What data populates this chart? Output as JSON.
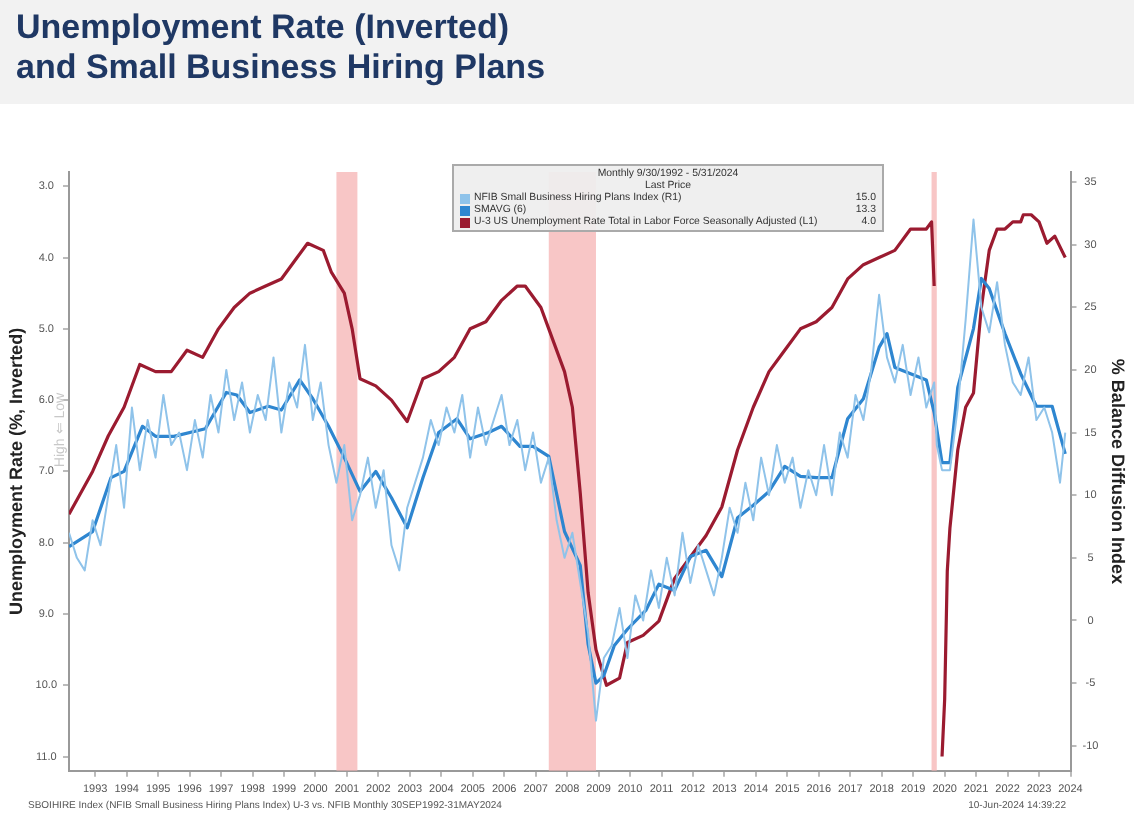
{
  "chart_data": {
    "type": "line",
    "title": "Unemployment Rate (Inverted)\nand Small Business Hiring Plans",
    "ylabel": "Unemployment Rate (%, Inverted)",
    "y2label": "% Balance Diffusion Index",
    "legend_title": "Monthly 9/30/1992 - 5/31/2024",
    "legend": "top",
    "grid": false,
    "marker": "none",
    "line_style": "solid",
    "annotations": [
      "Last Price",
      "SBOIHIRE Index (NFIB Small Business Hiring Plans Index) U-3 vs. NFIB Monthly 30SEP1992-31MAY2024",
      "10-Jun-2024 14:39:22",
      "High ⇐ Low",
      "15.0",
      "13.3",
      "4.0"
    ],
    "xlim": [
      "1992-09",
      "2024-07"
    ],
    "xticks": [
      {
        "value": "1993-07",
        "label": "1993"
      },
      {
        "value": "1994-07",
        "label": "1994"
      },
      {
        "value": "1995-07",
        "label": "1995"
      },
      {
        "value": "1996-07",
        "label": "1996"
      },
      {
        "value": "1997-07",
        "label": "1997"
      },
      {
        "value": "1998-07",
        "label": "1998"
      },
      {
        "value": "1999-07",
        "label": "1999"
      },
      {
        "value": "2000-07",
        "label": "2000"
      },
      {
        "value": "2001-07",
        "label": "2001"
      },
      {
        "value": "2002-07",
        "label": "2002"
      },
      {
        "value": "2003-07",
        "label": "2003"
      },
      {
        "value": "2004-07",
        "label": "2004"
      },
      {
        "value": "2005-07",
        "label": "2005"
      },
      {
        "value": "2006-07",
        "label": "2006"
      },
      {
        "value": "2007-07",
        "label": "2007"
      },
      {
        "value": "2008-07",
        "label": "2008"
      },
      {
        "value": "2009-07",
        "label": "2009"
      },
      {
        "value": "2010-07",
        "label": "2010"
      },
      {
        "value": "2011-07",
        "label": "2011"
      },
      {
        "value": "2012-07",
        "label": "2012"
      },
      {
        "value": "2013-07",
        "label": "2013"
      },
      {
        "value": "2014-07",
        "label": "2014"
      },
      {
        "value": "2015-07",
        "label": "2015"
      },
      {
        "value": "2016-07",
        "label": "2016"
      },
      {
        "value": "2017-07",
        "label": "2017"
      },
      {
        "value": "2018-07",
        "label": "2018"
      },
      {
        "value": "2019-07",
        "label": "2019"
      },
      {
        "value": "2020-07",
        "label": "2020"
      },
      {
        "value": "2021-07",
        "label": "2021"
      },
      {
        "value": "2022-07",
        "label": "2022"
      },
      {
        "value": "2023-07",
        "label": "2023"
      },
      {
        "value": "2024-07",
        "label": "2024"
      }
    ],
    "ylim": [
      11.2,
      2.8
    ],
    "yticks": [
      {
        "value": 3,
        "label": "3.0"
      },
      {
        "value": 4,
        "label": "4.0"
      },
      {
        "value": 5,
        "label": "5.0"
      },
      {
        "value": 6,
        "label": "6.0"
      },
      {
        "value": 7,
        "label": "7.0"
      },
      {
        "value": 8,
        "label": "8.0"
      },
      {
        "value": 9,
        "label": "9.0"
      },
      {
        "value": 10,
        "label": "10.0"
      },
      {
        "value": 11,
        "label": "11.0"
      }
    ],
    "y2lim": [
      -12,
      35.8
    ],
    "y2ticks": [
      -10,
      -5,
      0,
      5,
      10,
      15,
      20,
      25,
      30,
      35
    ],
    "bands": [
      {
        "axis": "x",
        "from": "2001-03",
        "to": "2001-11",
        "color": "#f6b3b3"
      },
      {
        "axis": "x",
        "from": "2007-12",
        "to": "2009-06",
        "color": "#f6b3b3"
      },
      {
        "axis": "x",
        "from": "2020-02",
        "to": "2020-04",
        "color": "#f6b3b3"
      }
    ],
    "series": [
      {
        "name": "NFIB Small Business Hiring Plans Index (R1)",
        "color": "#8fc3ea",
        "axis": "y2",
        "x": [
          "1992-09",
          "1992-12",
          "1993-03",
          "1993-06",
          "1993-09",
          "1993-12",
          "1994-03",
          "1994-06",
          "1994-09",
          "1994-12",
          "1995-03",
          "1995-06",
          "1995-09",
          "1995-12",
          "1996-03",
          "1996-06",
          "1996-09",
          "1996-12",
          "1997-03",
          "1997-06",
          "1997-09",
          "1997-12",
          "1998-03",
          "1998-06",
          "1998-09",
          "1998-12",
          "1999-03",
          "1999-06",
          "1999-09",
          "1999-12",
          "2000-03",
          "2000-06",
          "2000-09",
          "2000-12",
          "2001-03",
          "2001-06",
          "2001-09",
          "2001-12",
          "2002-03",
          "2002-06",
          "2002-09",
          "2002-12",
          "2003-03",
          "2003-06",
          "2003-09",
          "2003-12",
          "2004-03",
          "2004-06",
          "2004-09",
          "2004-12",
          "2005-03",
          "2005-06",
          "2005-09",
          "2005-12",
          "2006-03",
          "2006-06",
          "2006-09",
          "2006-12",
          "2007-03",
          "2007-06",
          "2007-09",
          "2007-12",
          "2008-03",
          "2008-06",
          "2008-09",
          "2008-12",
          "2009-03",
          "2009-06",
          "2009-09",
          "2009-12",
          "2010-03",
          "2010-06",
          "2010-09",
          "2010-12",
          "2011-03",
          "2011-06",
          "2011-09",
          "2011-12",
          "2012-03",
          "2012-06",
          "2012-09",
          "2012-12",
          "2013-03",
          "2013-06",
          "2013-09",
          "2013-12",
          "2014-03",
          "2014-06",
          "2014-09",
          "2014-12",
          "2015-03",
          "2015-06",
          "2015-09",
          "2015-12",
          "2016-03",
          "2016-06",
          "2016-09",
          "2016-12",
          "2017-03",
          "2017-06",
          "2017-09",
          "2017-12",
          "2018-03",
          "2018-06",
          "2018-09",
          "2018-12",
          "2019-03",
          "2019-06",
          "2019-09",
          "2019-12",
          "2020-03",
          "2020-04",
          "2020-06",
          "2020-09",
          "2020-12",
          "2021-03",
          "2021-06",
          "2021-09",
          "2021-12",
          "2022-03",
          "2022-06",
          "2022-09",
          "2022-12",
          "2023-03",
          "2023-06",
          "2023-09",
          "2023-12",
          "2024-03",
          "2024-05"
        ],
        "values": [
          7,
          5,
          4,
          8,
          6,
          10,
          14,
          9,
          17,
          12,
          16,
          13,
          18,
          14,
          15,
          12,
          16,
          13,
          18,
          15,
          20,
          16,
          19,
          15,
          18,
          16,
          21,
          15,
          19,
          17,
          22,
          16,
          19,
          14,
          11,
          14,
          8,
          10,
          13,
          9,
          12,
          6,
          4,
          9,
          11,
          13,
          16,
          14,
          17,
          15,
          18,
          13,
          17,
          14,
          16,
          18,
          14,
          16,
          12,
          15,
          11,
          13,
          8,
          5,
          7,
          3,
          -1,
          -8,
          -3,
          -2,
          1,
          -3,
          2,
          0,
          4,
          1,
          5,
          2,
          7,
          3,
          6,
          4,
          2,
          5,
          9,
          7,
          11,
          8,
          13,
          10,
          14,
          11,
          13,
          9,
          12,
          10,
          14,
          10,
          15,
          13,
          18,
          16,
          20,
          26,
          21,
          19,
          22,
          18,
          21,
          17,
          19,
          14,
          12,
          12,
          17,
          24,
          32,
          25,
          23,
          27,
          22,
          19,
          18,
          21,
          16,
          17,
          15,
          11,
          15
        ]
      },
      {
        "name": "SMAVG (6)",
        "color": "#2e86d0",
        "axis": "y2",
        "x": [
          "1992-09",
          "1993-06",
          "1994-01",
          "1994-06",
          "1995-01",
          "1995-06",
          "1996-01",
          "1997-01",
          "1997-09",
          "1998-01",
          "1998-06",
          "1999-01",
          "1999-06",
          "2000-01",
          "2000-06",
          "2000-12",
          "2001-06",
          "2001-12",
          "2002-06",
          "2002-12",
          "2003-06",
          "2003-12",
          "2004-06",
          "2005-01",
          "2005-06",
          "2006-01",
          "2006-06",
          "2007-01",
          "2007-06",
          "2007-12",
          "2008-06",
          "2008-12",
          "2009-03",
          "2009-06",
          "2009-09",
          "2010-01",
          "2010-06",
          "2011-01",
          "2011-06",
          "2011-12",
          "2012-06",
          "2012-12",
          "2013-06",
          "2013-12",
          "2014-06",
          "2014-12",
          "2015-06",
          "2015-12",
          "2016-06",
          "2016-12",
          "2017-06",
          "2017-12",
          "2018-06",
          "2018-09",
          "2018-12",
          "2019-06",
          "2019-12",
          "2020-03",
          "2020-06",
          "2020-09",
          "2020-12",
          "2021-06",
          "2021-09",
          "2021-12",
          "2022-06",
          "2022-12",
          "2023-06",
          "2023-12",
          "2024-05"
        ],
        "values": [
          5.9,
          7.1,
          11.4,
          11.9,
          15.5,
          14.7,
          14.7,
          15.3,
          18.2,
          18.0,
          16.6,
          17.1,
          16.8,
          19.2,
          17.7,
          15.5,
          13.0,
          10.3,
          11.9,
          9.8,
          7.4,
          11.4,
          15.0,
          16.1,
          14.5,
          15.0,
          15.5,
          13.9,
          13.9,
          13.1,
          7.1,
          4.4,
          -1.9,
          -5.0,
          -4.4,
          -2.0,
          -0.7,
          0.8,
          2.9,
          2.4,
          5.1,
          5.6,
          3.5,
          8.2,
          9.2,
          10.3,
          12.3,
          11.5,
          11.4,
          11.4,
          16.1,
          17.7,
          21.8,
          22.9,
          20.2,
          19.7,
          19.2,
          16.6,
          12.6,
          12.6,
          18.6,
          23.3,
          27.3,
          26.5,
          22.9,
          19.7,
          17.1,
          17.1,
          13.3
        ]
      },
      {
        "name": "U-3 US Unemployment Rate Total in Labor Force Seasonally Adjusted (L1)",
        "color": "#9b1b30",
        "axis": "y",
        "x": [
          "1992-09",
          "1992-12",
          "1993-06",
          "1993-12",
          "1994-06",
          "1994-12",
          "1995-06",
          "1995-12",
          "1996-06",
          "1996-12",
          "1997-06",
          "1997-12",
          "1998-06",
          "1998-12",
          "1999-06",
          "1999-12",
          "2000-04",
          "2000-10",
          "2001-01",
          "2001-06",
          "2001-09",
          "2001-12",
          "2002-06",
          "2002-12",
          "2003-06",
          "2003-12",
          "2004-06",
          "2004-12",
          "2005-06",
          "2005-12",
          "2006-06",
          "2006-12",
          "2007-03",
          "2007-09",
          "2007-12",
          "2008-06",
          "2008-09",
          "2008-12",
          "2009-03",
          "2009-06",
          "2009-10",
          "2010-03",
          "2010-06",
          "2010-12",
          "2011-06",
          "2011-12",
          "2012-06",
          "2012-12",
          "2013-06",
          "2013-12",
          "2014-06",
          "2014-12",
          "2015-06",
          "2015-12",
          "2016-06",
          "2016-12",
          "2017-06",
          "2017-12",
          "2018-06",
          "2018-12",
          "2019-06",
          "2019-12",
          "2020-02",
          "2020-03",
          "2020-04",
          "2020-05",
          "2020-06",
          "2020-07",
          "2020-08",
          "2020-09",
          "2020-12",
          "2021-03",
          "2021-06",
          "2021-09",
          "2021-12",
          "2022-03",
          "2022-06",
          "2022-09",
          "2022-12",
          "2023-01",
          "2023-04",
          "2023-07",
          "2023-10",
          "2024-01",
          "2024-05"
        ],
        "values": [
          7.6,
          7.4,
          7.0,
          6.5,
          6.1,
          5.5,
          5.6,
          5.6,
          5.3,
          5.4,
          5.0,
          4.7,
          4.5,
          4.4,
          4.3,
          4.0,
          3.8,
          3.9,
          4.2,
          4.5,
          5.0,
          5.7,
          5.8,
          6.0,
          6.3,
          5.7,
          5.6,
          5.4,
          5.0,
          4.9,
          4.6,
          4.4,
          4.4,
          4.7,
          5.0,
          5.6,
          6.1,
          7.3,
          8.7,
          9.5,
          10.0,
          9.9,
          9.4,
          9.3,
          9.1,
          8.5,
          8.2,
          7.9,
          7.5,
          6.7,
          6.1,
          5.6,
          5.3,
          5.0,
          4.9,
          4.7,
          4.3,
          4.1,
          4.0,
          3.9,
          3.6,
          3.6,
          3.5,
          4.4,
          null,
          null,
          11.0,
          10.2,
          8.4,
          7.8,
          6.7,
          6.1,
          5.9,
          4.7,
          3.9,
          3.6,
          3.6,
          3.5,
          3.5,
          3.4,
          3.4,
          3.5,
          3.8,
          3.7,
          4.0
        ]
      }
    ]
  }
}
